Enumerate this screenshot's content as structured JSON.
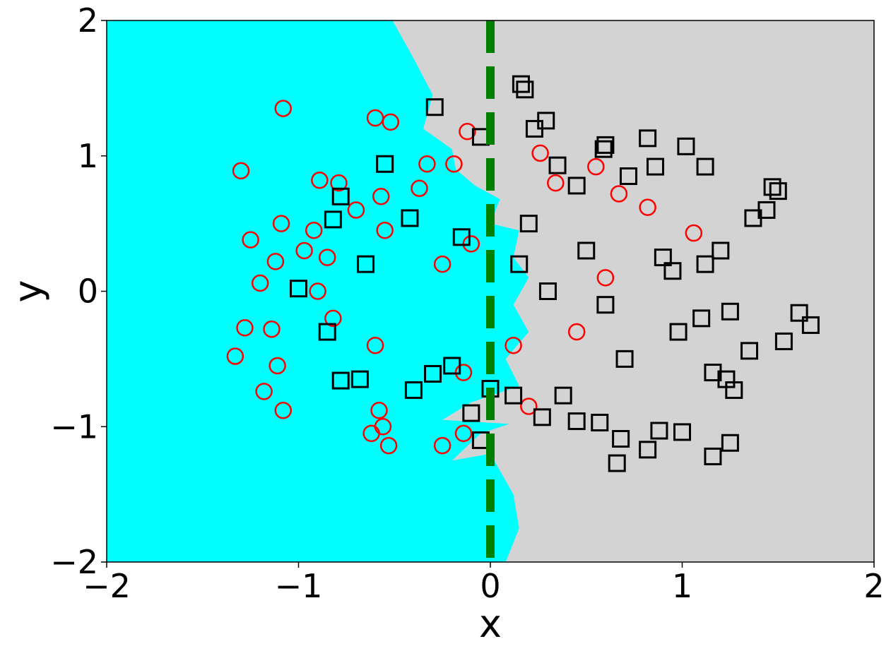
{
  "chart_data": {
    "type": "scatter",
    "title": "",
    "xlabel": "x",
    "ylabel": "y",
    "xlim": [
      -2,
      2
    ],
    "ylim": [
      -2,
      2
    ],
    "grid": false,
    "legend": "none",
    "xticks": [
      -2,
      -1,
      0,
      1,
      2
    ],
    "yticks": [
      -2,
      -1,
      0,
      1,
      2
    ],
    "xtick_labels": [
      "−2",
      "−1",
      "0",
      "1",
      "2"
    ],
    "ytick_labels": [
      "−2",
      "−1",
      "0",
      "1",
      "2"
    ],
    "colors": {
      "region_left": "#00ffff",
      "region_right": "#d3d3d3",
      "circle_stroke": "#ff0000",
      "square_stroke": "#000000",
      "boundary_line": "#008000"
    },
    "decision_boundary": {
      "x": 0,
      "style": "dashed",
      "color": "#008000"
    },
    "region_boundary": [
      [
        -0.51,
        2.0
      ],
      [
        -0.4,
        1.72
      ],
      [
        -0.3,
        1.45
      ],
      [
        -0.35,
        1.2
      ],
      [
        -0.2,
        1.05
      ],
      [
        -0.18,
        0.9
      ],
      [
        -0.08,
        0.78
      ],
      [
        0.05,
        0.68
      ],
      [
        0.0,
        0.5
      ],
      [
        0.15,
        0.45
      ],
      [
        0.12,
        0.25
      ],
      [
        0.2,
        0.1
      ],
      [
        0.12,
        -0.1
      ],
      [
        0.2,
        -0.3
      ],
      [
        0.08,
        -0.5
      ],
      [
        0.15,
        -0.7
      ],
      [
        -0.1,
        -0.82
      ],
      [
        -0.25,
        -0.95
      ],
      [
        0.1,
        -0.98
      ],
      [
        -0.05,
        -1.05
      ],
      [
        -0.2,
        -1.25
      ],
      [
        0.0,
        -1.2
      ],
      [
        0.12,
        -1.5
      ],
      [
        0.15,
        -1.75
      ],
      [
        0.08,
        -2.0
      ]
    ],
    "series": [
      {
        "marker": "circle",
        "color": "#ff0000",
        "x": [
          -1.08,
          -0.6,
          -0.52,
          -1.3,
          -1.25,
          -1.09,
          -0.89,
          -0.79,
          -0.57,
          -0.33,
          -0.12,
          -0.19,
          -0.37,
          -1.12,
          -0.97,
          -1.2,
          -1.14,
          -1.28,
          -1.33,
          -1.11,
          -1.18,
          -1.08,
          -0.62,
          -0.58,
          -0.56,
          -0.53,
          -0.25,
          -0.14,
          0.26,
          0.34,
          0.55,
          0.67,
          0.82,
          1.06,
          -0.92,
          -0.85,
          -0.9,
          -0.7,
          -0.82,
          -0.55,
          -0.6,
          -0.25,
          -0.1,
          -0.14,
          0.12,
          0.2,
          0.45,
          0.6
        ],
        "y": [
          1.35,
          1.28,
          1.25,
          0.89,
          0.38,
          0.5,
          0.82,
          0.8,
          0.7,
          0.94,
          1.18,
          0.94,
          0.76,
          0.22,
          0.3,
          0.06,
          -0.28,
          -0.27,
          -0.48,
          -0.55,
          -0.74,
          -0.88,
          -1.05,
          -0.88,
          -1.0,
          -1.14,
          -1.14,
          -1.05,
          1.02,
          0.8,
          0.92,
          0.72,
          0.62,
          0.43,
          0.45,
          0.25,
          0.0,
          0.6,
          -0.2,
          0.45,
          -0.4,
          0.2,
          0.35,
          -0.6,
          -0.4,
          -0.85,
          -0.3,
          0.1
        ]
      },
      {
        "marker": "square",
        "color": "#000000",
        "x": [
          -0.29,
          0.16,
          0.18,
          0.23,
          0.29,
          -0.05,
          0.6,
          0.59,
          0.82,
          1.02,
          1.12,
          0.35,
          0.45,
          0.72,
          0.86,
          1.37,
          1.44,
          1.5,
          1.47,
          -0.55,
          -0.65,
          -0.82,
          -0.78,
          -0.4,
          -0.1,
          -0.3,
          1.16,
          1.25,
          1.27,
          1.35,
          1.53,
          1.61,
          1.67,
          1.2,
          1.12,
          1.25,
          0.95,
          0.98,
          1.0,
          0.88,
          0.82,
          0.66,
          0.68,
          0.57,
          1.16,
          1.23,
          0.27,
          0.38,
          0.45,
          0.0,
          -0.2,
          -0.42,
          -1.0,
          -0.85,
          -0.78,
          -0.68,
          0.12,
          -0.05,
          0.2,
          0.5,
          0.7,
          0.9,
          1.1,
          0.3,
          0.6,
          0.15,
          -0.15
        ],
        "y": [
          1.36,
          1.53,
          1.49,
          1.2,
          1.26,
          1.14,
          1.08,
          1.05,
          1.13,
          1.07,
          0.92,
          0.93,
          0.78,
          0.85,
          0.92,
          0.54,
          0.6,
          0.74,
          0.77,
          0.94,
          0.2,
          0.53,
          -0.66,
          -0.73,
          -0.9,
          -0.61,
          -1.22,
          -1.12,
          -0.73,
          -0.44,
          -0.37,
          -0.16,
          -0.25,
          0.3,
          0.2,
          -0.15,
          0.15,
          -0.3,
          -1.04,
          -1.03,
          -1.17,
          -1.27,
          -1.09,
          -0.97,
          -0.6,
          -0.65,
          -0.93,
          -0.77,
          -0.96,
          -0.72,
          -0.55,
          0.54,
          0.02,
          -0.3,
          0.7,
          -0.65,
          -0.77,
          -1.1,
          0.5,
          0.3,
          -0.5,
          0.25,
          -0.2,
          0.0,
          -0.1,
          0.2,
          0.4
        ]
      }
    ]
  }
}
